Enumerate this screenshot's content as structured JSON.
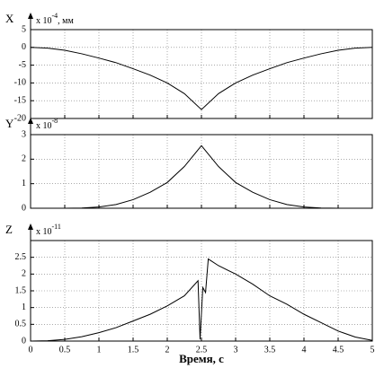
{
  "chart_data": [
    {
      "type": "line",
      "ylabel": "X",
      "scale_label": "x 10",
      "scale_exponent": "-4",
      "unit_label": ", мм",
      "x": [
        0,
        0.25,
        0.5,
        0.75,
        1,
        1.25,
        1.5,
        1.75,
        2,
        2.25,
        2.5,
        2.75,
        3,
        3.25,
        3.5,
        3.75,
        4,
        4.25,
        4.5,
        4.75,
        5
      ],
      "values": [
        0,
        -0.2,
        -0.8,
        -1.8,
        -3,
        -4.3,
        -6,
        -7.8,
        -10,
        -13,
        -17.5,
        -13,
        -10,
        -7.8,
        -6,
        -4.3,
        -3,
        -1.8,
        -0.8,
        -0.2,
        0
      ],
      "color": "#000000",
      "xlim": [
        0,
        5
      ],
      "xticks": [
        0,
        0.5,
        1,
        1.5,
        2,
        2.5,
        3,
        3.5,
        4,
        4.5,
        5
      ],
      "ylim": [
        -20,
        5
      ],
      "yticks": [
        -20,
        -15,
        -10,
        -5,
        0,
        5
      ],
      "grid": true
    },
    {
      "type": "line",
      "ylabel": "Y",
      "scale_label": "x 10",
      "scale_exponent": "-8",
      "x": [
        0,
        0.25,
        0.5,
        0.75,
        1,
        1.25,
        1.5,
        1.75,
        2,
        2.25,
        2.5,
        2.75,
        3,
        3.25,
        3.5,
        3.75,
        4,
        4.25,
        4.5,
        4.75,
        5
      ],
      "values": [
        0,
        0,
        0,
        0.01,
        0.05,
        0.15,
        0.35,
        0.65,
        1.05,
        1.7,
        2.55,
        1.7,
        1.05,
        0.65,
        0.35,
        0.15,
        0.05,
        0.01,
        0,
        0,
        0
      ],
      "color": "#000000",
      "xlim": [
        0,
        5
      ],
      "xticks": [
        0,
        0.5,
        1,
        1.5,
        2,
        2.5,
        3,
        3.5,
        4,
        4.5,
        5
      ],
      "ylim": [
        0,
        3
      ],
      "yticks": [
        0,
        1,
        2,
        3
      ],
      "grid": true
    },
    {
      "type": "line",
      "ylabel": "Z",
      "scale_label": "x 10",
      "scale_exponent": "-11",
      "xlabel": "Время, с",
      "x": [
        0,
        0.25,
        0.5,
        0.75,
        1,
        1.25,
        1.5,
        1.75,
        2,
        2.25,
        2.45,
        2.48,
        2.52,
        2.56,
        2.6,
        2.75,
        3,
        3.25,
        3.5,
        3.75,
        4,
        4.25,
        4.5,
        4.75,
        5
      ],
      "values": [
        0,
        0.01,
        0.05,
        0.13,
        0.25,
        0.4,
        0.6,
        0.8,
        1.05,
        1.35,
        1.8,
        0.05,
        1.6,
        1.45,
        2.45,
        2.25,
        2,
        1.7,
        1.35,
        1.1,
        0.8,
        0.55,
        0.3,
        0.12,
        0.02
      ],
      "color": "#000000",
      "xlim": [
        0,
        5
      ],
      "xticks": [
        0,
        0.5,
        1,
        1.5,
        2,
        2.5,
        3,
        3.5,
        4,
        4.5,
        5
      ],
      "ylim": [
        0,
        3
      ],
      "yticks": [
        0,
        0.5,
        1,
        1.5,
        2,
        2.5
      ],
      "grid": true
    }
  ]
}
